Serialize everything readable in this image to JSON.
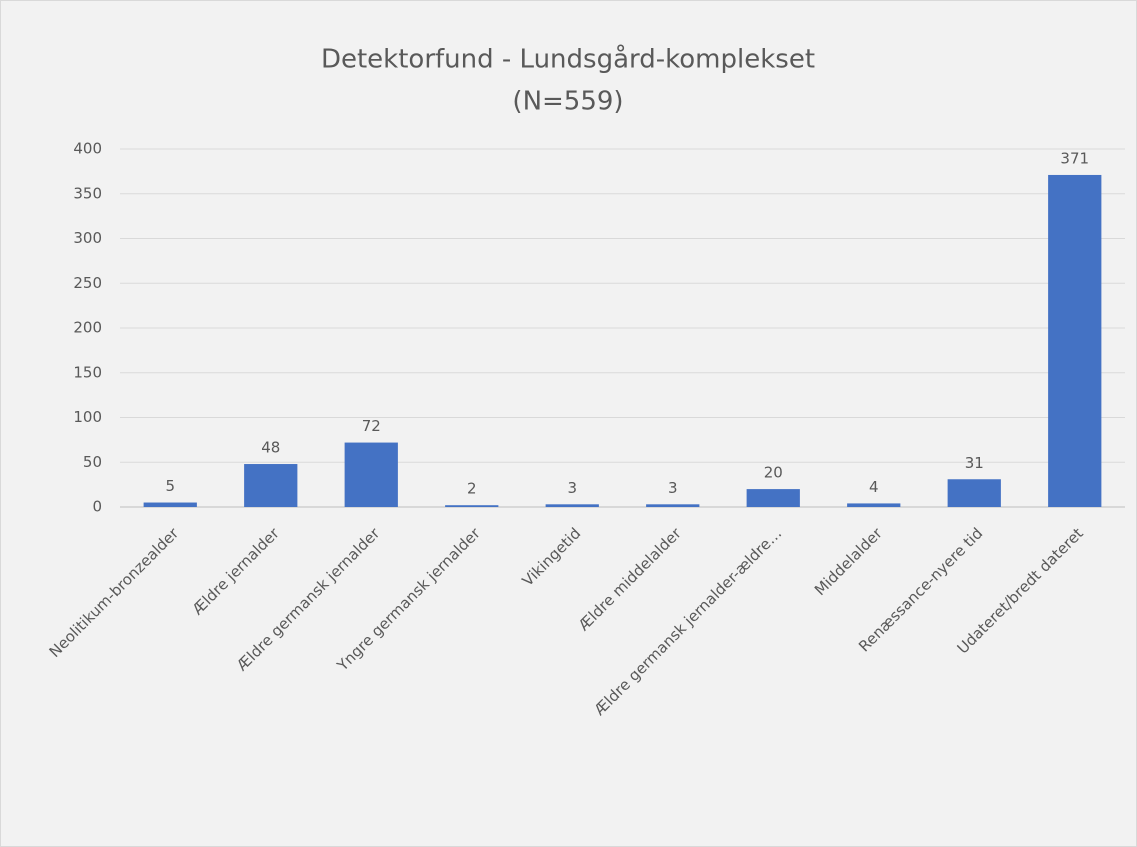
{
  "chart_data": {
    "type": "bar",
    "title": "Detektorfund - Lundsgård-komplekset",
    "subtitle": "(N=559)",
    "categories": [
      "Neolitikum-bronzealder",
      "Ældre jernalder",
      "Ældre germansk jernalder",
      "Yngre germansk jernalder",
      "Vikingetid",
      "Ældre middelalder",
      "Ældre germansk jernalder-ældre…",
      "Middelalder",
      "Renæssance-nyere tid",
      "Udateret/bredt dateret"
    ],
    "values": [
      5,
      48,
      72,
      2,
      3,
      3,
      20,
      4,
      31,
      371
    ],
    "color": "#4472c4",
    "ylim": [
      0,
      400
    ],
    "yticks": [
      0,
      50,
      100,
      150,
      200,
      250,
      300,
      350,
      400
    ],
    "grid": true
  }
}
